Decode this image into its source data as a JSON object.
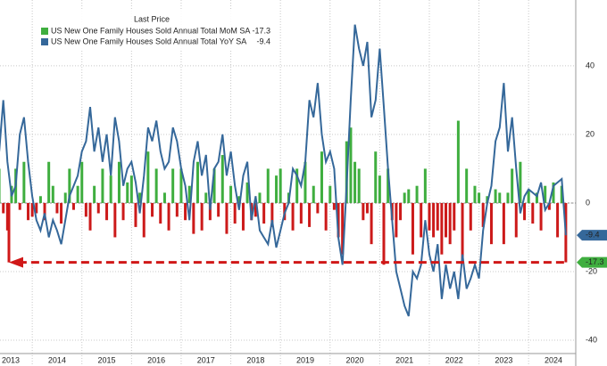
{
  "chart_data": {
    "type": "bar",
    "legend_title": "Last Price",
    "x": [
      2013.333,
      2013.417,
      2013.5,
      2013.583,
      2013.667,
      2013.75,
      2013.833,
      2013.917,
      2014,
      2014.083,
      2014.167,
      2014.25,
      2014.333,
      2014.417,
      2014.5,
      2014.583,
      2014.667,
      2014.75,
      2014.833,
      2014.917,
      2015,
      2015.083,
      2015.167,
      2015.25,
      2015.333,
      2015.417,
      2015.5,
      2015.583,
      2015.667,
      2015.75,
      2015.833,
      2015.917,
      2016,
      2016.083,
      2016.167,
      2016.25,
      2016.333,
      2016.417,
      2016.5,
      2016.583,
      2016.667,
      2016.75,
      2016.833,
      2016.917,
      2017,
      2017.083,
      2017.167,
      2017.25,
      2017.333,
      2017.417,
      2017.5,
      2017.583,
      2017.667,
      2017.75,
      2017.833,
      2017.917,
      2018,
      2018.083,
      2018.167,
      2018.25,
      2018.333,
      2018.417,
      2018.5,
      2018.583,
      2018.667,
      2018.75,
      2018.833,
      2018.917,
      2019,
      2019.083,
      2019.167,
      2019.25,
      2019.333,
      2019.417,
      2019.5,
      2019.583,
      2019.667,
      2019.75,
      2019.833,
      2019.917,
      2020,
      2020.083,
      2020.167,
      2020.25,
      2020.333,
      2020.417,
      2020.5,
      2020.583,
      2020.667,
      2020.75,
      2020.833,
      2020.917,
      2021,
      2021.083,
      2021.167,
      2021.25,
      2021.333,
      2021.417,
      2021.5,
      2021.583,
      2021.667,
      2021.75,
      2021.833,
      2021.917,
      2022,
      2022.083,
      2022.167,
      2022.25,
      2022.333,
      2022.417,
      2022.5,
      2022.583,
      2022.667,
      2022.75,
      2022.833,
      2022.917,
      2023,
      2023.083,
      2023.167,
      2023.25,
      2023.333,
      2023.417,
      2023.5,
      2023.583,
      2023.667,
      2023.75,
      2023.833,
      2023.917,
      2024,
      2024.083,
      2024.167,
      2024.25,
      2024.333,
      2024.417,
      2024.5,
      2024.583,
      2024.667,
      2024.75
    ],
    "series": [
      {
        "name": "US New One Family Houses Sold Annual Total MoM SA",
        "type": "bar",
        "color": "#3fae3f",
        "negative_color": "#cc1a1a",
        "values": [
          10,
          -3,
          -8,
          5,
          10,
          -2,
          12,
          -5,
          -4,
          -3,
          2,
          -5,
          12,
          5,
          -3,
          -6,
          3,
          10,
          -2,
          5,
          12,
          -4,
          -8,
          5,
          -3,
          10,
          -5,
          8,
          -10,
          12,
          -5,
          6,
          8,
          -7,
          3,
          -10,
          15,
          -4,
          10,
          -6,
          3,
          -8,
          10,
          -4,
          10,
          -5,
          5,
          -9,
          12,
          -8,
          3,
          -5,
          10,
          -4,
          14,
          -9,
          5,
          -6,
          2,
          -8,
          6,
          -5,
          -4,
          3,
          -6,
          10,
          -7,
          8,
          10,
          -5,
          3,
          -8,
          10,
          -6,
          12,
          -7,
          5,
          -3,
          15,
          -8,
          5,
          -2,
          -10,
          -15,
          18,
          22,
          12,
          10,
          -5,
          -3,
          -12,
          15,
          8,
          -18,
          10,
          -5,
          -10,
          -5,
          3,
          4,
          -15,
          5,
          -10,
          10,
          -8,
          -10,
          -8,
          -15,
          -10,
          -12,
          -8,
          24,
          -17,
          10,
          -8,
          5,
          3,
          -7,
          2,
          -12,
          4,
          3,
          -12,
          3,
          10,
          -10,
          12,
          -5,
          4,
          -6,
          3,
          -8,
          5,
          -2,
          6,
          -10,
          5,
          -17.3
        ]
      },
      {
        "name": "US New One Family Houses Sold Annual Total YoY SA",
        "type": "line",
        "color": "#35689a",
        "values": [
          15,
          30,
          12,
          2,
          5,
          20,
          25,
          12,
          2,
          -5,
          -8,
          -3,
          -10,
          -5,
          -8,
          -12,
          -5,
          2,
          5,
          8,
          15,
          18,
          28,
          15,
          22,
          12,
          20,
          8,
          25,
          18,
          5,
          10,
          12,
          6,
          -3,
          8,
          22,
          18,
          24,
          15,
          10,
          12,
          22,
          18,
          10,
          5,
          -5,
          12,
          18,
          8,
          14,
          -2,
          10,
          12,
          20,
          8,
          15,
          5,
          -2,
          8,
          12,
          -5,
          2,
          -8,
          -10,
          -12,
          -5,
          -13,
          -8,
          -3,
          0,
          10,
          8,
          5,
          12,
          30,
          25,
          35,
          20,
          12,
          15,
          10,
          -10,
          -18,
          5,
          30,
          52,
          45,
          40,
          47,
          25,
          30,
          45,
          28,
          10,
          -5,
          -20,
          -25,
          -30,
          -33,
          -20,
          -22,
          -18,
          -5,
          -15,
          -20,
          -12,
          -28,
          -18,
          -25,
          -20,
          -28,
          -15,
          -25,
          -22,
          -18,
          -22,
          -8,
          0,
          5,
          18,
          22,
          35,
          15,
          25,
          10,
          -3,
          2,
          4,
          3,
          2,
          6,
          -2,
          0,
          5,
          6,
          7,
          -9.4
        ]
      }
    ],
    "xlim": [
      2013.35,
      2024.95
    ],
    "xticks": [
      2013,
      2014,
      2015,
      2016,
      2017,
      2018,
      2019,
      2020,
      2021,
      2022,
      2023,
      2024
    ],
    "ylim": [
      -43.9,
      59.2
    ],
    "yticks": [
      40,
      20,
      0,
      -20,
      -40
    ],
    "grid": true
  }
}
